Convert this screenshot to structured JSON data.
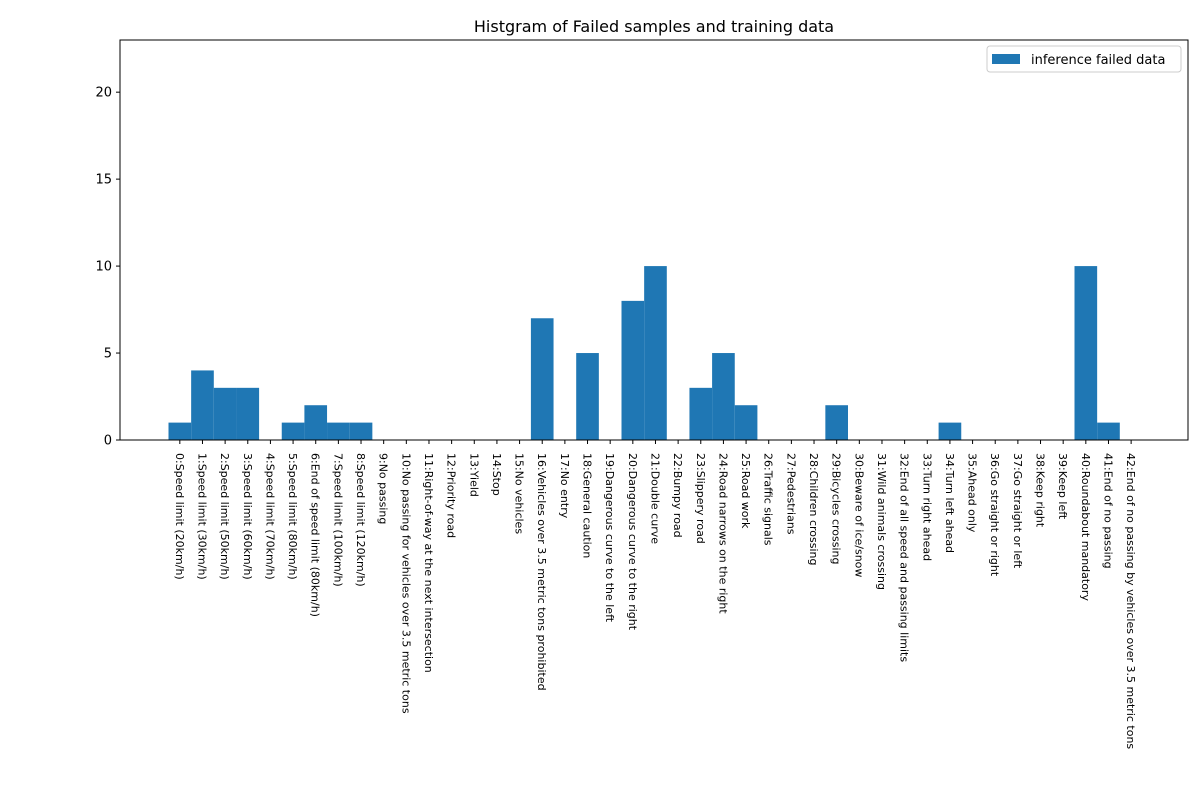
{
  "chart_data": {
    "type": "bar",
    "title": "Histgram of Failed samples and training data",
    "xlabel": "",
    "ylabel": "",
    "ylim": [
      0,
      23
    ],
    "yticks": [
      0,
      5,
      10,
      15,
      20
    ],
    "legend": {
      "placement": "top-right"
    },
    "grid": false,
    "colors": {
      "bar": "#1f77b4"
    },
    "categories": [
      "0:Speed limit (20km/h)",
      "1:Speed limit (30km/h)",
      "2:Speed limit (50km/h)",
      "3:Speed limit (60km/h)",
      "4:Speed limit (70km/h)",
      "5:Speed limit (80km/h)",
      "6:End of speed limit (80km/h)",
      "7:Speed limit (100km/h)",
      "8:Speed limit (120km/h)",
      "9:No passing",
      "10:No passing for vehicles over 3.5 metric tons",
      "11:Right-of-way at the next intersection",
      "12:Priority road",
      "13:Yield",
      "14:Stop",
      "15:No vehicles",
      "16:Vehicles over 3.5 metric tons prohibited",
      "17:No entry",
      "18:General caution",
      "19:Dangerous curve to the left",
      "20:Dangerous curve to the right",
      "21:Double curve",
      "22:Bumpy road",
      "23:Slippery road",
      "24:Road narrows on the right",
      "25:Road work",
      "26:Traffic signals",
      "27:Pedestrians",
      "28:Children crossing",
      "29:Bicycles crossing",
      "30:Beware of ice/snow",
      "31:Wild animals crossing",
      "32:End of all speed and passing limits",
      "33:Turn right ahead",
      "34:Turn left ahead",
      "35:Ahead only",
      "36:Go straight or right",
      "37:Go straight or left",
      "38:Keep right",
      "39:Keep left",
      "40:Roundabout mandatory",
      "41:End of no passing",
      "42:End of no passing by vehicles over 3.5 metric tons"
    ],
    "series": [
      {
        "name": "inference failed data",
        "values": [
          1,
          4,
          3,
          3,
          0,
          1,
          2,
          1,
          1,
          0,
          0,
          0,
          0,
          0,
          0,
          0,
          7,
          0,
          5,
          0,
          8,
          10,
          0,
          3,
          5,
          2,
          0,
          0,
          0,
          2,
          0,
          0,
          0,
          0,
          1,
          0,
          0,
          0,
          0,
          0,
          10,
          1,
          0
        ]
      }
    ]
  }
}
